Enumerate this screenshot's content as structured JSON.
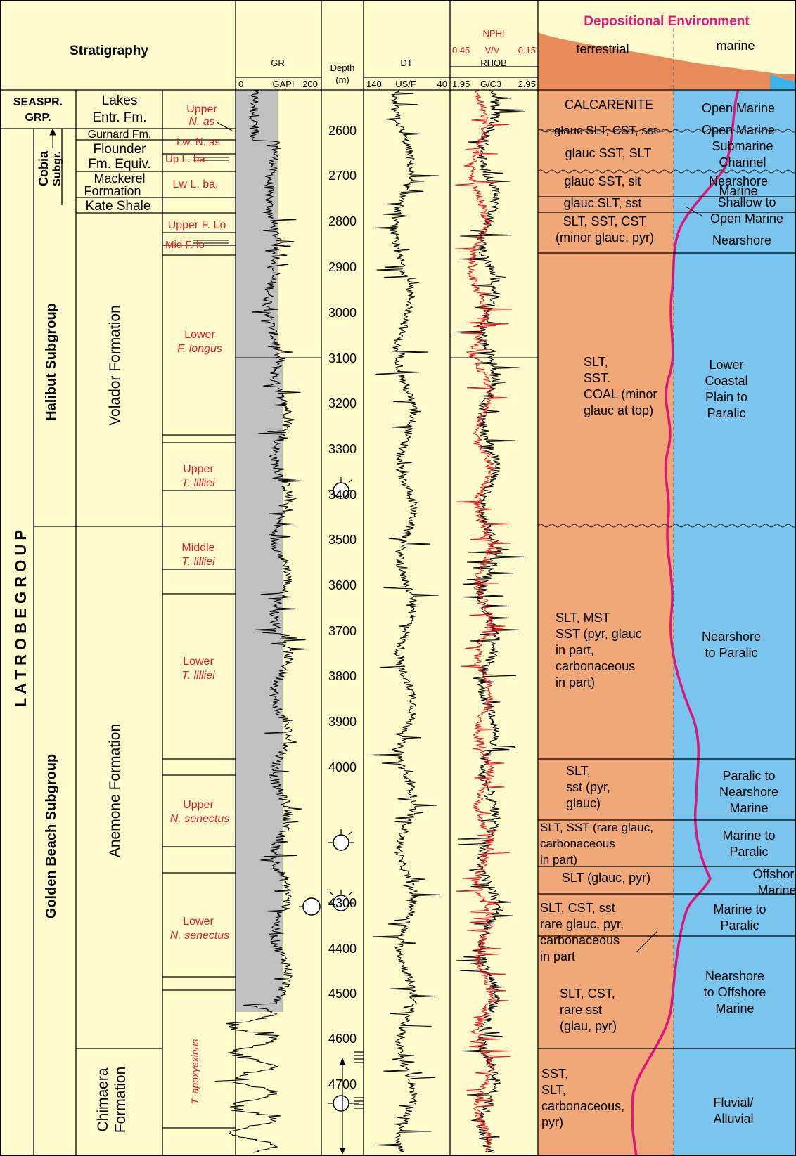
{
  "header": {
    "stratigraphy": "Stratigraphy",
    "gr_title": "GR",
    "gr_unit": "GAPI",
    "gr_left": "0",
    "gr_right": "200",
    "depth_title": "Depth",
    "depth_unit": "(m)",
    "dt_title": "DT",
    "dt_left": "140",
    "dt_unit": "US/F",
    "dt_right": "40",
    "nphi_title": "NPHI",
    "nphi_left": "0.45",
    "nphi_unit": "V/V",
    "nphi_right": "-0.15",
    "rhob_title": "RHOB",
    "rhob_left": "1.95",
    "rhob_unit": "G/C3",
    "rhob_right": "2.95",
    "dep_env": "Depositional Environment",
    "terrestrial": "terrestrial",
    "marine": "marine"
  },
  "groups": {
    "latrobe": "L A T R O B E   G R O U P",
    "seaspray_1": "SEASPR.",
    "seaspray_2": "GRP.",
    "cobia_1": "Cobia",
    "cobia_2": "Subgr.",
    "halibut": "Halibut Subgroup",
    "golden_beach": "Golden Beach Subgroup"
  },
  "formations": {
    "lakes_1": "Lakes",
    "lakes_2": "Entr. Fm.",
    "gurnard": "Gurnard Fm.",
    "flounder_1": "Flounder",
    "flounder_2": "Fm. Equiv.",
    "mackerel_1": "Mackerel",
    "mackerel_2": "Formation",
    "kate": "Kate Shale",
    "volador": "Volador Formation",
    "anemone": "Anemone Formation",
    "chimaera_1": "Chimaera",
    "chimaera_2": "Formation"
  },
  "biozones": {
    "upper_nas_1": "Upper",
    "upper_nas_2": "N. as",
    "lw_nas": "Lw. N. as",
    "up_lba": "Up L. ba",
    "lw_lba": "Lw L. ba.",
    "upper_flo": "Upper F. Lo",
    "mid_flo": "Mid F. lo",
    "lower_fl_1": "Lower",
    "lower_fl_2": "F. longus",
    "upper_tl_1": "Upper",
    "upper_tl_2": "T. lilliei",
    "middle_tl_1": "Middle",
    "middle_tl_2": "T. lilliei",
    "lower_tl_1": "Lower",
    "lower_tl_2": "T. lilliei",
    "upper_ns_1": "Upper",
    "upper_ns_2": "N. senectus",
    "lower_ns_1": "Lower",
    "lower_ns_2": "N. senectus",
    "tapox": "T. apoxyexinus"
  },
  "depths": [
    "2600",
    "2700",
    "2800",
    "2900",
    "3000",
    "3100",
    "3200",
    "3300",
    "3400",
    "3500",
    "3600",
    "3700",
    "3800",
    "3900",
    "4000",
    "4300",
    "4400",
    "4500",
    "4600",
    "4700"
  ],
  "lithology": {
    "l1": [
      "CALCARENITE"
    ],
    "l2": [
      "glauc SLT, CST, sst"
    ],
    "l3": [
      "glauc SST, SLT"
    ],
    "l4": [
      "glauc SST, slt"
    ],
    "l5": [
      "glauc SLT, sst"
    ],
    "l6": [
      "SLT, SST, CST",
      "(minor glauc, pyr)"
    ],
    "l7": [
      "SLT,",
      "SST.",
      "COAL (minor",
      "glauc at top)"
    ],
    "l8": [
      "SLT, MST",
      "SST (pyr, glauc",
      "in part,",
      "carbonaceous",
      "in part)"
    ],
    "l9": [
      "SLT,",
      "sst (pyr,",
      "glauc)"
    ],
    "l10": [
      "SLT, SST (rare glauc,",
      "carbonaceous",
      "in part)"
    ],
    "l11": [
      "SLT (glauc, pyr)"
    ],
    "l12": [
      "SLT, CST, sst",
      "rare glauc, pyr,",
      "carbonaceous",
      "in part"
    ],
    "l13": [
      "SLT, CST,",
      "rare sst",
      "(glau, pyr)"
    ],
    "l14": [
      "SST,",
      "SLT,",
      "carbonaceous,",
      "pyr)"
    ]
  },
  "environment": {
    "e1": [
      "Open  Marine"
    ],
    "e2": [
      "Open Marine"
    ],
    "e3": [
      "Submarine",
      "Channel"
    ],
    "e4": [
      "Nearshore",
      "Marine"
    ],
    "e5": [
      "Shallow to",
      "Open Marine"
    ],
    "e6": [
      "Nearshore"
    ],
    "e7": [
      "Lower",
      "Coastal",
      "Plain to",
      "Paralic"
    ],
    "e8": [
      "Nearshore",
      "to Paralic"
    ],
    "e9": [
      "Paralic to",
      "Nearshore",
      "Marine"
    ],
    "e10": [
      "Marine to",
      "Paralic"
    ],
    "e11": [
      "Offshore",
      "Marine"
    ],
    "e12": [
      "Marine to",
      "Paralic"
    ],
    "e13": [
      "Nearshore",
      "to Offshore",
      "Marine"
    ],
    "e14": [
      "Fluvial/",
      "Alluvial"
    ]
  },
  "colors": {
    "background": "#fffbcc",
    "terrestrial": "#f0a878",
    "marine": "#79c5ee",
    "header_terrestrial": "#e98a5a",
    "header_marine": "#3ab4e8",
    "red_text": "#e31b23",
    "magenta": "#e0157a",
    "gr_fill": "#c0c0c0",
    "rhob_curve": "#e31b23"
  }
}
